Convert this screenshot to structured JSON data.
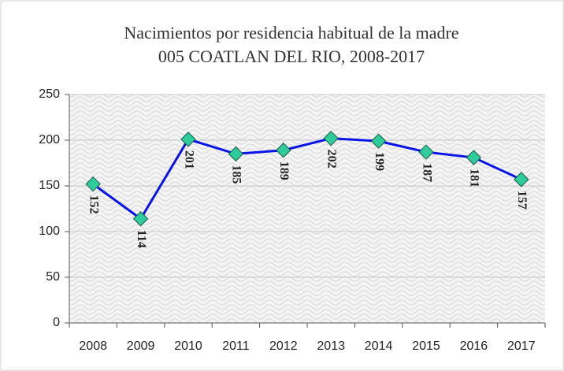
{
  "chart_data": {
    "type": "line",
    "title": "Nacimientos por residencia habitual de la madre",
    "subtitle": "005 COATLAN DEL RIO, 2008-2017",
    "categories": [
      "2008",
      "2009",
      "2010",
      "2011",
      "2012",
      "2013",
      "2014",
      "2015",
      "2016",
      "2017"
    ],
    "series": [
      {
        "name": "Nacimientos",
        "color": "#0a14e6",
        "marker_color": "#2ecc9a",
        "values": [
          152,
          114,
          201,
          185,
          189,
          202,
          199,
          187,
          181,
          157
        ]
      }
    ],
    "ylim": [
      0,
      250
    ],
    "yticks": [
      0,
      50,
      100,
      150,
      200,
      250
    ],
    "grid": true,
    "data_labels": true
  }
}
